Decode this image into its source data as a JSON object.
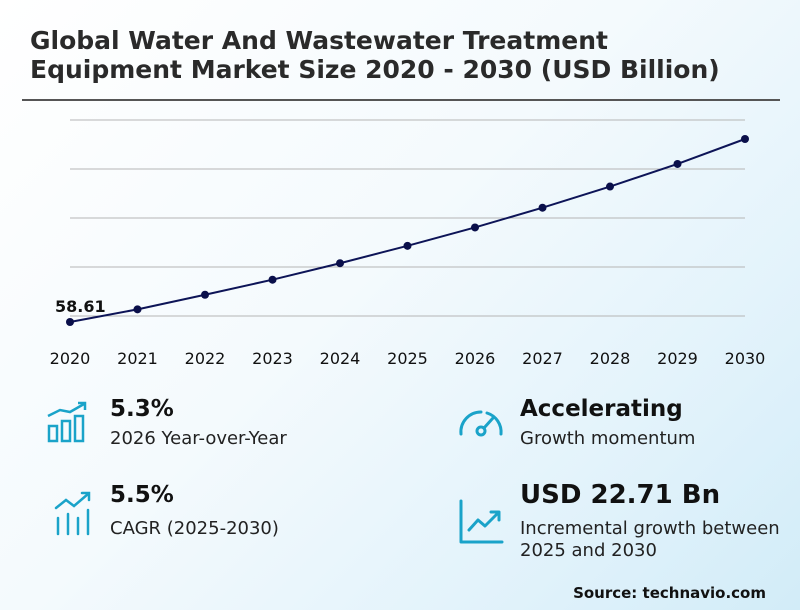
{
  "title": "Global Water And Wastewater Treatment Equipment Market Size 2020 - 2030 (USD Billion)",
  "chart_data": {
    "type": "line",
    "x": [
      "2020",
      "2021",
      "2022",
      "2023",
      "2024",
      "2025",
      "2026",
      "2027",
      "2028",
      "2029",
      "2030"
    ],
    "series": [
      {
        "values": [
          58.61,
          61.3,
          64.4,
          67.6,
          71.1,
          74.8,
          78.7,
          82.9,
          87.4,
          92.2,
          97.5
        ]
      }
    ],
    "data_labels": [
      {
        "x": "2020",
        "text": "58.61"
      }
    ],
    "ylim": [
      58.61,
      97.5
    ],
    "grid": true,
    "line_color": "#0d1457",
    "marker_color": "#0a0f4a"
  },
  "stats": [
    {
      "value": "5.3%",
      "label": "2026 Year-over-Year",
      "icon": "bar-growth-icon"
    },
    {
      "value": "Accelerating",
      "label": "Growth momentum",
      "icon": "gauge-icon"
    },
    {
      "value": "5.5%",
      "label": "CAGR (2025-2030)",
      "icon": "chart-trend-icon"
    },
    {
      "value": "USD 22.71 Bn",
      "label": "Incremental growth between 2025 and 2030",
      "icon": "line-chart-frame-icon"
    }
  ],
  "source": "Source: technavio.com",
  "colors": {
    "accent": "#1aa3c9",
    "text": "#1a1a1a",
    "grid": "#b5b5b5"
  }
}
